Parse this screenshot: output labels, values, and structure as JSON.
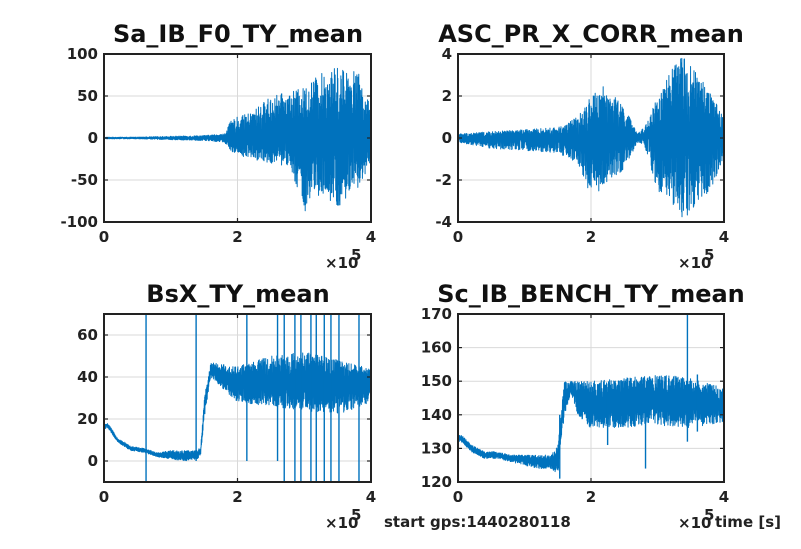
{
  "figure": {
    "footer_gps": "start gps:1440280118",
    "footer_time": "time [s]",
    "series_color": "#0072BD",
    "grid_color": "#d9d9d9",
    "axes_color": "#222222"
  },
  "chart_data": [
    {
      "type": "line",
      "title": "Sa_IB_F0_TY_mean",
      "xlabel": "",
      "ylabel": "",
      "xlim": [
        0,
        400000
      ],
      "ylim": [
        -100,
        100
      ],
      "x_ticks": [
        "0",
        "2",
        "4"
      ],
      "x_tick_values": [
        0,
        200000,
        400000
      ],
      "x_exponent": "×10",
      "x_exponent_power": "5",
      "y_ticks": [
        "-100",
        "-50",
        "0",
        "50",
        "100"
      ],
      "y_tick_values": [
        -100,
        -50,
        0,
        50,
        100
      ],
      "grid": true,
      "series": [
        {
          "x": [
            0,
            50000,
            100000,
            150000,
            180000,
            190000,
            200000,
            220000,
            250000,
            280000,
            300000,
            320000,
            350000,
            380000,
            400000
          ],
          "y_center": [
            0,
            0,
            0,
            0,
            0,
            0,
            0,
            0,
            0,
            0,
            0,
            0,
            0,
            0,
            0
          ],
          "y_low": [
            -1,
            -1,
            -2,
            -3,
            -5,
            -15,
            -20,
            -25,
            -30,
            -35,
            -90,
            -70,
            -85,
            -60,
            -30
          ],
          "y_high": [
            1,
            1,
            2,
            3,
            5,
            20,
            25,
            30,
            50,
            55,
            60,
            75,
            85,
            80,
            35
          ]
        }
      ]
    },
    {
      "type": "line",
      "title": "ASC_PR_X_CORR_mean",
      "xlabel": "",
      "ylabel": "",
      "xlim": [
        0,
        400000
      ],
      "ylim": [
        -4,
        4
      ],
      "x_ticks": [
        "0",
        "2",
        "4"
      ],
      "x_tick_values": [
        0,
        200000,
        400000
      ],
      "x_exponent": "×10",
      "x_exponent_power": "5",
      "y_ticks": [
        "-4",
        "-2",
        "0",
        "2",
        "4"
      ],
      "y_tick_values": [
        -4,
        -2,
        0,
        2,
        4
      ],
      "grid": true,
      "series": [
        {
          "x": [
            0,
            50000,
            100000,
            150000,
            180000,
            200000,
            220000,
            250000,
            270000,
            280000,
            300000,
            320000,
            340000,
            360000,
            380000,
            400000
          ],
          "y_center": [
            0,
            0,
            0,
            0,
            0,
            0,
            0,
            0,
            0,
            0,
            0,
            0,
            0,
            0,
            0,
            0
          ],
          "y_low": [
            -0.2,
            -0.5,
            -0.6,
            -0.7,
            -1.2,
            -3.0,
            -2.2,
            -1.5,
            -0.2,
            -0.3,
            -2.5,
            -3.0,
            -4.0,
            -3.0,
            -2.5,
            -1.0
          ],
          "y_high": [
            0.2,
            0.3,
            0.4,
            0.5,
            1.0,
            2.0,
            2.5,
            1.5,
            0.2,
            0.5,
            2.0,
            3.2,
            4.0,
            3.0,
            2.2,
            1.0
          ]
        }
      ]
    },
    {
      "type": "line",
      "title": "BsX_TY_mean",
      "xlabel": "",
      "ylabel": "",
      "xlim": [
        0,
        400000
      ],
      "ylim": [
        -10,
        70
      ],
      "x_ticks": [
        "0",
        "2",
        "4"
      ],
      "x_tick_values": [
        0,
        200000,
        400000
      ],
      "x_exponent": "×10",
      "x_exponent_power": "5",
      "y_ticks": [
        "0",
        "20",
        "40",
        "60"
      ],
      "y_tick_values": [
        0,
        20,
        40,
        60
      ],
      "grid": true,
      "series": [
        {
          "x": [
            0,
            5000,
            10000,
            20000,
            40000,
            60000,
            80000,
            100000,
            120000,
            140000,
            145000,
            150000,
            160000,
            180000,
            200000,
            250000,
            300000,
            350000,
            400000
          ],
          "y_center": [
            16,
            17,
            15,
            10,
            6,
            5,
            3,
            3,
            2,
            3,
            5,
            25,
            43,
            40,
            36,
            38,
            38,
            36,
            36
          ],
          "y_low": [
            15,
            16,
            14,
            9,
            5,
            4,
            2,
            1,
            0,
            1,
            3,
            20,
            40,
            34,
            28,
            26,
            24,
            22,
            28
          ],
          "y_high": [
            17,
            18,
            16,
            11,
            7,
            6,
            4,
            5,
            5,
            5,
            7,
            30,
            47,
            46,
            45,
            50,
            52,
            48,
            44
          ]
        }
      ],
      "spikes": [
        {
          "x": 63000,
          "low": -10,
          "high": 70
        },
        {
          "x": 138000,
          "low": 0,
          "high": 70
        },
        {
          "x": 214000,
          "low": 0,
          "high": 70
        },
        {
          "x": 260000,
          "low": 0,
          "high": 70
        },
        {
          "x": 270000,
          "low": -10,
          "high": 70
        },
        {
          "x": 286000,
          "low": -10,
          "high": 70
        },
        {
          "x": 295000,
          "low": -10,
          "high": 70
        },
        {
          "x": 310000,
          "low": -10,
          "high": 70
        },
        {
          "x": 318000,
          "low": -10,
          "high": 70
        },
        {
          "x": 330000,
          "low": -10,
          "high": 70
        },
        {
          "x": 340000,
          "low": -10,
          "high": 70
        },
        {
          "x": 352000,
          "low": -10,
          "high": 70
        },
        {
          "x": 382000,
          "low": -10,
          "high": 70
        }
      ]
    },
    {
      "type": "line",
      "title": "Sc_IB_BENCH_TY_mean",
      "xlabel": "",
      "ylabel": "",
      "xlim": [
        0,
        400000
      ],
      "ylim": [
        120,
        170
      ],
      "x_ticks": [
        "0",
        "2",
        "4"
      ],
      "x_tick_values": [
        0,
        200000,
        400000
      ],
      "x_exponent": "×10",
      "x_exponent_power": "5",
      "y_ticks": [
        "120",
        "130",
        "140",
        "150",
        "160",
        "170"
      ],
      "y_tick_values": [
        120,
        130,
        140,
        150,
        160,
        170
      ],
      "grid": true,
      "series": [
        {
          "x": [
            0,
            5000,
            10000,
            20000,
            40000,
            60000,
            80000,
            100000,
            120000,
            140000,
            150000,
            160000,
            170000,
            180000,
            200000,
            250000,
            300000,
            350000,
            400000
          ],
          "y_center": [
            133,
            133,
            132,
            130,
            128,
            128,
            127,
            127,
            126,
            126,
            126,
            146,
            148,
            146,
            143,
            144,
            145,
            144,
            142
          ],
          "y_low": [
            132,
            132,
            131,
            129,
            127,
            127,
            126,
            125,
            124,
            124,
            121,
            140,
            146,
            140,
            136,
            136,
            137,
            136,
            138
          ],
          "y_high": [
            134,
            134,
            133,
            131,
            129,
            129,
            128,
            128,
            128,
            128,
            131,
            150,
            150,
            150,
            150,
            151,
            152,
            151,
            148
          ]
        }
      ],
      "spikes": [
        {
          "x": 153000,
          "low": 121,
          "high": 140
        },
        {
          "x": 225000,
          "low": 131,
          "high": 146
        },
        {
          "x": 282000,
          "low": 124,
          "high": 146
        },
        {
          "x": 345000,
          "low": 132,
          "high": 170
        },
        {
          "x": 360000,
          "low": 135,
          "high": 152
        }
      ]
    }
  ]
}
